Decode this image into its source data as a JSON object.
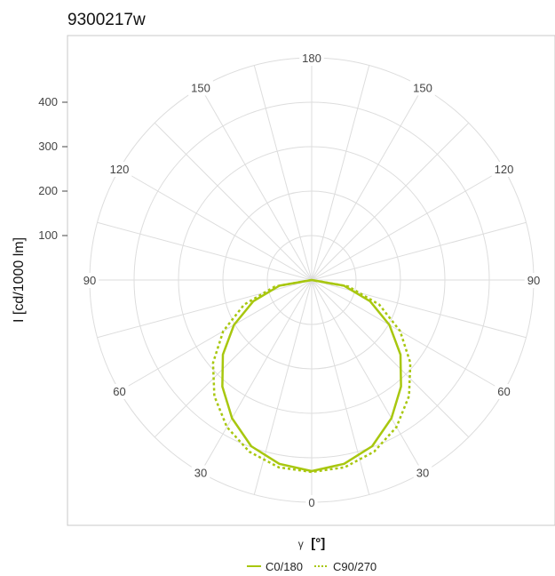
{
  "chart_data": {
    "type": "polar-line",
    "title": "9300217w",
    "xlabel_symbol": "γ",
    "xlabel_unit": "[°]",
    "ylabel": "I [cd/1000 lm]",
    "radial_ticks": [
      {
        "value": 100,
        "label": "100"
      },
      {
        "value": 200,
        "label": "200"
      },
      {
        "value": 300,
        "label": "300"
      },
      {
        "value": 400,
        "label": "400"
      }
    ],
    "r_max": 500,
    "angle_labels": [
      {
        "angle": 180,
        "label": "180"
      },
      {
        "angle": 150,
        "label": "150"
      },
      {
        "angle": 120,
        "label": "120"
      },
      {
        "angle": 90,
        "label": "90"
      },
      {
        "angle": 60,
        "label": "60"
      },
      {
        "angle": 30,
        "label": "30"
      },
      {
        "angle": 0,
        "label": "0"
      }
    ],
    "grid": true,
    "legend_position": "bottom",
    "series": [
      {
        "name": "C0/180",
        "style": "solid",
        "color": "#a8c70f",
        "gamma": [
          0,
          10,
          20,
          30,
          40,
          50,
          60,
          70,
          80,
          90
        ],
        "intensity": [
          430,
          420,
          398,
          359,
          313,
          261,
          202,
          140,
          74,
          0
        ]
      },
      {
        "name": "C90/270",
        "style": "dotted",
        "color": "#a8c70f",
        "gamma": [
          0,
          10,
          20,
          30,
          40,
          50,
          60,
          70,
          80,
          90
        ],
        "intensity": [
          432,
          428,
          411,
          382,
          341,
          290,
          230,
          162,
          84,
          0
        ]
      }
    ]
  }
}
